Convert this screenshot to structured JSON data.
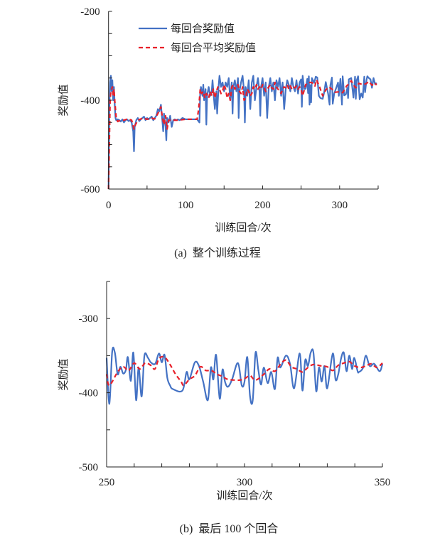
{
  "colors": {
    "reward": "#4472C4",
    "avg_reward": "#E8202A",
    "axis": "#222222"
  },
  "chart_data": [
    {
      "type": "line",
      "title": "",
      "caption": "(a)  整个训练过程",
      "xlabel": "训练回合/次",
      "ylabel": "奖励值",
      "xlim": [
        0,
        350
      ],
      "ylim": [
        -600,
        -200
      ],
      "x_ticks": [
        0,
        50,
        100,
        150,
        200,
        250,
        300,
        350
      ],
      "x_tick_labels": [
        "0",
        "100",
        "200",
        "300"
      ],
      "x_tick_label_values": [
        0,
        100,
        200,
        300
      ],
      "y_ticks": [
        -600,
        -550,
        -500,
        -450,
        -400,
        -350,
        -300,
        -250,
        -200
      ],
      "y_tick_labels": [
        "-200",
        "-400",
        "-600"
      ],
      "y_tick_label_values": [
        -200,
        -400,
        -600
      ],
      "legend": {
        "placement": "top-left",
        "entries": [
          "每回合奖励值",
          "每回合平均奖励值"
        ]
      },
      "grid": false,
      "series": [
        {
          "name": "每回合奖励值",
          "style": "solid",
          "x": [
            0,
            1,
            2,
            3,
            4,
            5,
            6,
            7,
            8,
            9,
            10,
            12,
            14,
            16,
            18,
            20,
            22,
            24,
            26,
            28,
            30,
            32,
            33,
            34,
            36,
            38,
            40,
            42,
            44,
            46,
            48,
            50,
            52,
            54,
            56,
            58,
            60,
            62,
            64,
            66,
            68,
            70,
            71,
            72,
            74,
            75,
            76,
            78,
            80,
            82,
            84,
            86,
            88,
            90,
            92,
            94,
            96,
            100,
            105,
            110,
            115,
            118,
            119,
            120,
            122,
            123,
            124,
            126,
            127,
            128,
            130,
            132,
            134,
            135,
            137,
            138,
            140,
            141,
            143,
            144,
            146,
            148,
            150,
            152,
            154,
            156,
            158,
            160,
            161,
            162,
            164,
            166,
            168,
            169,
            170,
            172,
            174,
            176,
            177,
            178,
            180,
            182,
            184,
            186,
            188,
            190,
            192,
            194,
            196,
            197,
            198,
            200,
            202,
            204,
            206,
            208,
            210,
            212,
            214,
            216,
            218,
            220,
            222,
            224,
            226,
            228,
            230,
            232,
            234,
            236,
            238,
            240,
            242,
            244,
            246,
            248,
            250,
            251,
            252,
            254,
            256,
            258,
            259,
            260,
            261,
            262,
            263,
            264,
            267,
            269,
            271,
            273,
            275,
            278,
            280,
            282,
            285,
            287,
            288,
            290,
            291,
            293,
            296,
            298,
            299,
            301,
            303,
            304,
            306,
            308,
            310,
            311,
            312,
            315,
            318,
            320,
            321,
            322,
            324,
            326,
            328,
            330,
            332,
            333,
            335,
            336,
            338,
            340,
            342,
            344,
            346,
            348
          ],
          "y": [
            -600,
            -420,
            -360,
            -345,
            -380,
            -355,
            -400,
            -370,
            -410,
            -440,
            -445,
            -443,
            -445,
            -448,
            -443,
            -450,
            -445,
            -443,
            -447,
            -445,
            -450,
            -470,
            -515,
            -460,
            -445,
            -440,
            -447,
            -443,
            -440,
            -437,
            -445,
            -440,
            -443,
            -440,
            -437,
            -445,
            -440,
            -435,
            -420,
            -425,
            -410,
            -450,
            -470,
            -430,
            -460,
            -490,
            -440,
            -450,
            -435,
            -460,
            -445,
            -443,
            -445,
            -443,
            -445,
            -443,
            -440,
            -443,
            -443,
            -443,
            -443,
            -450,
            -380,
            -370,
            -390,
            -365,
            -400,
            -375,
            -455,
            -390,
            -370,
            -390,
            -380,
            -355,
            -400,
            -420,
            -380,
            -430,
            -365,
            -345,
            -370,
            -360,
            -380,
            -360,
            -370,
            -350,
            -400,
            -360,
            -430,
            -370,
            -355,
            -380,
            -350,
            -440,
            -380,
            -360,
            -345,
            -380,
            -450,
            -370,
            -390,
            -355,
            -420,
            -360,
            -345,
            -400,
            -370,
            -350,
            -380,
            -435,
            -370,
            -350,
            -390,
            -360,
            -440,
            -370,
            -350,
            -380,
            -360,
            -400,
            -355,
            -370,
            -350,
            -390,
            -360,
            -420,
            -375,
            -355,
            -365,
            -380,
            -350,
            -370,
            -380,
            -355,
            -385,
            -360,
            -353,
            -415,
            -345,
            -375,
            -374,
            -352,
            -384,
            -346,
            -410,
            -366,
            -405,
            -350,
            -361,
            -347,
            -349,
            -390,
            -395,
            -397,
            -382,
            -359,
            -385,
            -410,
            -366,
            -349,
            -408,
            -385,
            -370,
            -360,
            -390,
            -352,
            -410,
            -346,
            -389,
            -387,
            -372,
            -395,
            -353,
            -350,
            -394,
            -347,
            -397,
            -356,
            -346,
            -398,
            -385,
            -394,
            -347,
            -382,
            -354,
            -346,
            -350,
            -353,
            -372,
            -350,
            -364,
            -361
          ]
        },
        {
          "name": "每回合平均奖励值",
          "style": "dashed",
          "x": [
            0,
            2,
            3,
            5,
            6,
            7,
            8,
            10,
            12,
            16,
            20,
            25,
            30,
            33,
            35,
            38,
            45,
            50,
            55,
            60,
            64,
            68,
            70,
            72,
            74,
            76,
            78,
            82,
            90,
            100,
            115,
            117,
            119,
            121,
            123,
            125,
            127,
            130,
            132,
            134,
            136,
            138,
            140,
            142,
            144,
            146,
            148,
            150,
            152,
            154,
            156,
            158,
            160,
            162,
            164,
            166,
            168,
            170,
            172,
            174,
            176,
            178,
            180,
            182,
            184,
            186,
            188,
            190,
            192,
            194,
            196,
            198,
            200,
            202,
            204,
            206,
            208,
            210,
            212,
            214,
            216,
            218,
            220,
            222,
            224,
            226,
            228,
            230,
            232,
            234,
            236,
            238,
            240,
            242,
            244,
            246,
            248,
            250,
            252,
            256,
            260,
            264,
            268,
            270,
            274,
            278,
            282,
            286,
            290,
            294,
            300,
            304,
            309,
            313,
            315,
            319,
            321,
            325,
            330,
            334,
            338,
            342,
            346,
            348
          ],
          "y": [
            -600,
            -400,
            -380,
            -370,
            -390,
            -375,
            -400,
            -440,
            -448,
            -445,
            -445,
            -442,
            -445,
            -465,
            -455,
            -445,
            -440,
            -443,
            -440,
            -442,
            -430,
            -415,
            -440,
            -455,
            -435,
            -465,
            -445,
            -445,
            -445,
            -443,
            -443,
            -420,
            -375,
            -385,
            -380,
            -395,
            -385,
            -395,
            -380,
            -390,
            -375,
            -395,
            -380,
            -370,
            -375,
            -385,
            -380,
            -365,
            -375,
            -395,
            -385,
            -400,
            -370,
            -365,
            -375,
            -370,
            -365,
            -380,
            -385,
            -370,
            -400,
            -395,
            -375,
            -380,
            -390,
            -385,
            -370,
            -375,
            -365,
            -375,
            -370,
            -375,
            -365,
            -372,
            -380,
            -375,
            -370,
            -365,
            -372,
            -375,
            -360,
            -370,
            -375,
            -380,
            -385,
            -375,
            -370,
            -372,
            -365,
            -375,
            -368,
            -375,
            -370,
            -372,
            -368,
            -375,
            -370,
            -375,
            -390,
            -365,
            -360,
            -360,
            -368,
            -354,
            -370,
            -390,
            -377,
            -370,
            -375,
            -382,
            -381,
            -383,
            -368,
            -362,
            -356,
            -368,
            -372,
            -362,
            -365,
            -363,
            -358,
            -366,
            -361,
            -366
          ]
        }
      ]
    },
    {
      "type": "line",
      "title": "",
      "caption": "(b)  最后 100 个回合",
      "xlabel": "训练回合/次",
      "ylabel": "奖励值",
      "xlim": [
        250,
        350
      ],
      "ylim": [
        -500,
        -250
      ],
      "x_ticks": [
        250,
        260,
        270,
        280,
        290,
        300,
        310,
        320,
        330,
        340,
        350
      ],
      "x_tick_labels": [
        "250",
        "300",
        "350"
      ],
      "x_tick_label_values": [
        250,
        300,
        350
      ],
      "y_ticks": [
        -500,
        -450,
        -400,
        -350,
        -300,
        -250
      ],
      "y_tick_labels": [
        "-300",
        "-400",
        "-500"
      ],
      "y_tick_label_values": [
        -300,
        -400,
        -500
      ],
      "grid": false,
      "series": [
        {
          "name": "每回合奖励值",
          "style": "solid",
          "x": [
            250,
            251,
            252,
            253,
            254,
            255,
            256,
            257,
            257.7,
            258.8,
            259.7,
            260.7,
            261.6,
            262.7,
            263.7,
            265,
            266,
            267.6,
            269,
            270,
            271,
            272,
            273,
            274,
            277.5,
            279,
            280,
            282,
            283.5,
            285,
            286.7,
            287.8,
            288.7,
            289.7,
            291,
            292,
            292.9,
            294,
            295.5,
            297.6,
            299,
            300,
            301,
            302,
            303,
            304,
            305,
            306,
            307,
            308.4,
            309.7,
            311,
            312,
            313,
            315,
            316.5,
            318,
            320,
            321,
            322,
            323,
            324,
            325,
            326,
            327,
            328,
            329,
            330,
            332,
            333,
            334,
            335,
            336,
            337,
            338,
            339,
            339.8,
            341,
            341.5,
            342.9,
            344,
            345.4,
            347,
            349,
            350
          ],
          "y": [
            -353,
            -415,
            -345,
            -346,
            -375,
            -365,
            -374,
            -369,
            -352,
            -384,
            -346,
            -410,
            -366,
            -405,
            -350,
            -353,
            -359,
            -361,
            -347,
            -359,
            -349,
            -380,
            -390,
            -395,
            -397,
            -372,
            -382,
            -359,
            -364,
            -385,
            -410,
            -366,
            -382,
            -349,
            -408,
            -369,
            -385,
            -392,
            -382,
            -360,
            -390,
            -385,
            -352,
            -405,
            -410,
            -346,
            -369,
            -389,
            -366,
            -387,
            -372,
            -395,
            -353,
            -366,
            -350,
            -361,
            -394,
            -347,
            -397,
            -356,
            -364,
            -346,
            -346,
            -398,
            -366,
            -385,
            -364,
            -394,
            -347,
            -382,
            -375,
            -354,
            -346,
            -371,
            -350,
            -368,
            -353,
            -371,
            -372,
            -367,
            -350,
            -364,
            -361,
            -371,
            -361
          ]
        },
        {
          "name": "每回合平均奖励值",
          "style": "dashed",
          "x": [
            250,
            251,
            254,
            256,
            258,
            260,
            262,
            264,
            266,
            267.5,
            269,
            271,
            273,
            275,
            277,
            278,
            280,
            282,
            284,
            286,
            288,
            290,
            292,
            294,
            298,
            300,
            302,
            304,
            307,
            309,
            311,
            313,
            315,
            317,
            319,
            321,
            323,
            325,
            328,
            330,
            332,
            334,
            336,
            338,
            340,
            342,
            344,
            346,
            348,
            350
          ],
          "y": [
            -375,
            -390,
            -372,
            -365,
            -370,
            -360,
            -368,
            -360,
            -363,
            -368,
            -354,
            -352,
            -362,
            -375,
            -385,
            -390,
            -382,
            -377,
            -365,
            -370,
            -370,
            -375,
            -378,
            -382,
            -383,
            -381,
            -377,
            -383,
            -375,
            -368,
            -371,
            -362,
            -356,
            -365,
            -368,
            -372,
            -366,
            -362,
            -364,
            -365,
            -370,
            -363,
            -360,
            -358,
            -364,
            -366,
            -364,
            -361,
            -366,
            -360
          ]
        }
      ]
    }
  ]
}
